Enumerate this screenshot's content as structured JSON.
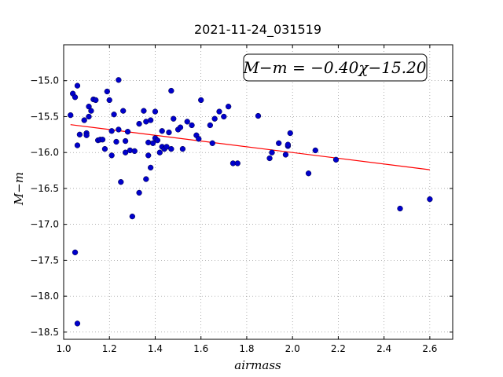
{
  "chart_data": {
    "type": "scatter",
    "title": "2021-11-24_031519",
    "xlabel": "airmass",
    "ylabel": "M−m",
    "xlim": [
      1.0,
      2.7
    ],
    "ylim": [
      -18.6,
      -14.5
    ],
    "y_inverted": true,
    "grid": true,
    "x_ticks": [
      1.0,
      1.2,
      1.4,
      1.6,
      1.8,
      2.0,
      2.2,
      2.4,
      2.6
    ],
    "y_ticks": [
      -15.0,
      -15.5,
      -16.0,
      -16.5,
      -17.0,
      -17.5,
      -18.0,
      -18.5
    ],
    "x_tick_labels": [
      "1.0",
      "1.2",
      "1.4",
      "1.6",
      "1.8",
      "2.0",
      "2.2",
      "2.4",
      "2.6"
    ],
    "y_tick_labels": [
      "−15.0",
      "−15.5",
      "−16.0",
      "−16.5",
      "−17.0",
      "−17.5",
      "−18.0",
      "−18.5"
    ],
    "point_color": "#0000cc",
    "line_color": "#ff0000",
    "annotation": "M−m = −0.40χ−15.20",
    "fit": {
      "slope": -0.4,
      "intercept": -15.2,
      "x_range": [
        1.03,
        2.6
      ]
    },
    "points": [
      [
        1.03,
        -15.48
      ],
      [
        1.04,
        -15.18
      ],
      [
        1.05,
        -15.23
      ],
      [
        1.06,
        -15.07
      ],
      [
        1.05,
        -17.39
      ],
      [
        1.06,
        -18.38
      ],
      [
        1.06,
        -15.9
      ],
      [
        1.07,
        -15.75
      ],
      [
        1.09,
        -15.55
      ],
      [
        1.1,
        -15.73
      ],
      [
        1.1,
        -15.76
      ],
      [
        1.11,
        -15.36
      ],
      [
        1.11,
        -15.5
      ],
      [
        1.12,
        -15.42
      ],
      [
        1.13,
        -15.26
      ],
      [
        1.14,
        -15.27
      ],
      [
        1.15,
        -15.83
      ],
      [
        1.16,
        -15.82
      ],
      [
        1.17,
        -15.82
      ],
      [
        1.18,
        -15.95
      ],
      [
        1.19,
        -15.15
      ],
      [
        1.2,
        -15.27
      ],
      [
        1.21,
        -15.7
      ],
      [
        1.21,
        -16.04
      ],
      [
        1.22,
        -15.47
      ],
      [
        1.23,
        -15.85
      ],
      [
        1.24,
        -15.68
      ],
      [
        1.24,
        -14.99
      ],
      [
        1.25,
        -16.41
      ],
      [
        1.26,
        -15.42
      ],
      [
        1.27,
        -16.0
      ],
      [
        1.27,
        -15.84
      ],
      [
        1.28,
        -15.71
      ],
      [
        1.29,
        -15.97
      ],
      [
        1.3,
        -16.89
      ],
      [
        1.31,
        -15.98
      ],
      [
        1.33,
        -15.6
      ],
      [
        1.33,
        -16.56
      ],
      [
        1.35,
        -15.42
      ],
      [
        1.36,
        -16.37
      ],
      [
        1.36,
        -15.57
      ],
      [
        1.37,
        -15.86
      ],
      [
        1.37,
        -16.04
      ],
      [
        1.38,
        -16.21
      ],
      [
        1.38,
        -15.55
      ],
      [
        1.39,
        -15.87
      ],
      [
        1.4,
        -15.43
      ],
      [
        1.4,
        -15.8
      ],
      [
        1.41,
        -15.83
      ],
      [
        1.42,
        -16.0
      ],
      [
        1.43,
        -15.7
      ],
      [
        1.43,
        -15.92
      ],
      [
        1.44,
        -15.95
      ],
      [
        1.45,
        -15.92
      ],
      [
        1.46,
        -15.72
      ],
      [
        1.47,
        -15.95
      ],
      [
        1.47,
        -15.14
      ],
      [
        1.48,
        -15.53
      ],
      [
        1.5,
        -15.68
      ],
      [
        1.51,
        -15.65
      ],
      [
        1.52,
        -15.95
      ],
      [
        1.54,
        -15.57
      ],
      [
        1.56,
        -15.62
      ],
      [
        1.58,
        -15.76
      ],
      [
        1.59,
        -15.81
      ],
      [
        1.6,
        -15.27
      ],
      [
        1.64,
        -15.62
      ],
      [
        1.65,
        -15.87
      ],
      [
        1.66,
        -15.53
      ],
      [
        1.68,
        -15.43
      ],
      [
        1.7,
        -15.5
      ],
      [
        1.72,
        -15.36
      ],
      [
        1.74,
        -16.15
      ],
      [
        1.76,
        -16.15
      ],
      [
        1.85,
        -15.49
      ],
      [
        1.9,
        -16.08
      ],
      [
        1.91,
        -16.0
      ],
      [
        1.94,
        -15.87
      ],
      [
        1.97,
        -16.03
      ],
      [
        1.98,
        -15.91
      ],
      [
        1.98,
        -15.89
      ],
      [
        1.99,
        -15.73
      ],
      [
        2.07,
        -16.29
      ],
      [
        2.1,
        -15.97
      ],
      [
        2.19,
        -16.1
      ],
      [
        2.47,
        -16.78
      ],
      [
        2.6,
        -16.65
      ]
    ]
  }
}
